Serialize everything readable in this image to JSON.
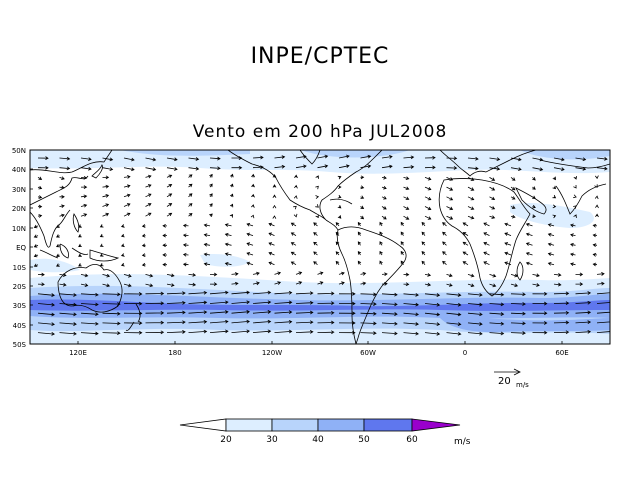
{
  "header": {
    "title": "INPE/CPTEC"
  },
  "map": {
    "subtitle": "Vento em 200 hPa JUL2008",
    "lat_labels": [
      "50N",
      "40N",
      "30N",
      "20N",
      "10N",
      "EQ",
      "10S",
      "20S",
      "30S",
      "40S",
      "50S"
    ],
    "lon_labels": [
      "120E",
      "180",
      "120W",
      "60W",
      "0",
      "60E"
    ],
    "reference_vector": {
      "value": "20",
      "unit": "m/s"
    }
  },
  "colorbar": {
    "ticks": [
      "20",
      "30",
      "40",
      "50",
      "60"
    ],
    "unit": "m/s",
    "colors": [
      "#ffffff",
      "#ddeeff",
      "#b8d4fb",
      "#8fb1f6",
      "#5f77ee",
      "#9900cc"
    ]
  },
  "colors": {
    "land_outline": "#000000",
    "arrow": "#000000",
    "jet_core": "#5f77ee"
  }
}
